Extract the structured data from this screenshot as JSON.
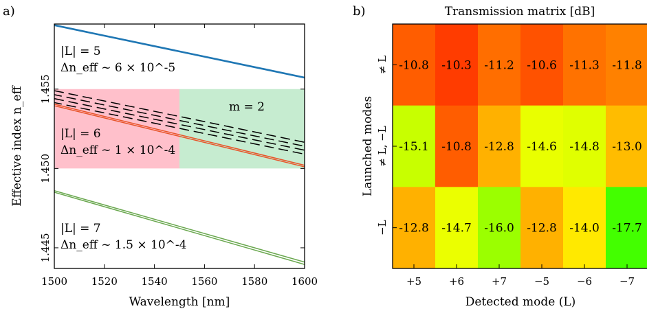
{
  "panel_labels": {
    "a": "a)",
    "b": "b)"
  },
  "chart_data": [
    {
      "type": "line",
      "panel": "a)",
      "title": "",
      "xlabel": "Wavelength [nm]",
      "ylabel": "Effective index n_eff",
      "xlim": [
        1500,
        1600
      ],
      "ylim": [
        1.4437,
        1.4591
      ],
      "xticks": [
        1500,
        1520,
        1540,
        1560,
        1580,
        1600
      ],
      "yticks": [
        1.445,
        1.45,
        1.455
      ],
      "xtick_labels": [
        "1500",
        "1520",
        "1540",
        "1560",
        "1580",
        "1600"
      ],
      "ytick_labels": [
        "1.445",
        "1.450",
        "1.455"
      ],
      "grid": false,
      "regions": [
        {
          "x": [
            1500,
            1550
          ],
          "y": [
            1.45,
            1.455
          ],
          "color": "#ffc0cb"
        },
        {
          "x": [
            1550,
            1600
          ],
          "y": [
            1.45,
            1.455
          ],
          "color": "#c6ecd0"
        }
      ],
      "series": [
        {
          "group": "|L|=5",
          "color": "#1f77b4",
          "style": "solid",
          "x": [
            1500,
            1600
          ],
          "y": [
            1.45905,
            1.45575
          ]
        },
        {
          "group": "|L|=5",
          "color": "#1f77b4",
          "style": "solid",
          "x": [
            1500,
            1600
          ],
          "y": [
            1.459,
            1.4557
          ]
        },
        {
          "group": "|L|=6",
          "color": "#e8552a",
          "style": "solid",
          "x": [
            1500,
            1600
          ],
          "y": [
            1.45405,
            1.4502
          ]
        },
        {
          "group": "|L|=6",
          "color": "#e8552a",
          "style": "solid",
          "x": [
            1500,
            1600
          ],
          "y": [
            1.45395,
            1.4501
          ]
        },
        {
          "group": "|L|=7",
          "color": "#6aa84f",
          "style": "solid",
          "x": [
            1500,
            1600
          ],
          "y": [
            1.4486,
            1.4441
          ]
        },
        {
          "group": "|L|=7",
          "color": "#6aa84f",
          "style": "solid",
          "x": [
            1500,
            1600
          ],
          "y": [
            1.4485,
            1.44395
          ]
        },
        {
          "group": "m=2",
          "color": "#000000",
          "style": "dashed",
          "x": [
            1500,
            1600
          ],
          "y": [
            1.4549,
            1.45165
          ]
        },
        {
          "group": "m=2",
          "color": "#000000",
          "style": "dashed",
          "x": [
            1500,
            1600
          ],
          "y": [
            1.45465,
            1.4514
          ]
        },
        {
          "group": "m=2",
          "color": "#000000",
          "style": "dashed",
          "x": [
            1500,
            1600
          ],
          "y": [
            1.4544,
            1.45115
          ]
        },
        {
          "group": "m=2",
          "color": "#000000",
          "style": "dashed",
          "x": [
            1500,
            1600
          ],
          "y": [
            1.45415,
            1.4509
          ]
        }
      ],
      "annotations": [
        {
          "line1": "|L| = 5",
          "line2": "Δn_eff ~ 6 × 10^-5"
        },
        {
          "line1": "|L| = 6",
          "line2": "Δn_eff ~ 1 × 10^-4"
        },
        {
          "line1": "|L| = 7",
          "line2": "Δn_eff ~ 1.5 × 10^-4"
        },
        {
          "line1": "m = 2",
          "line2": ""
        }
      ]
    },
    {
      "type": "heatmap",
      "panel": "b)",
      "title": "Transmission matrix [dB]",
      "xlabel": "Detected mode (L)",
      "ylabel": "Launched modes",
      "x_categories": [
        "+5",
        "+6",
        "+7",
        "−5",
        "−6",
        "−7"
      ],
      "y_categories": [
        "≠ L",
        "≠ L, −L",
        "−L"
      ],
      "values": [
        [
          -10.8,
          -10.3,
          -11.2,
          -10.6,
          -11.3,
          -11.8
        ],
        [
          -15.1,
          -10.8,
          -12.8,
          -14.6,
          -14.8,
          -13.0
        ],
        [
          -12.8,
          -14.7,
          -16.0,
          -12.8,
          -14.0,
          -17.7
        ]
      ],
      "value_labels": [
        [
          "-10.8",
          "-10.3",
          "-11.2",
          "-10.6",
          "-11.3",
          "-11.8"
        ],
        [
          "-15.1",
          "-10.8",
          "-12.8",
          "-14.6",
          "-14.8",
          "-13.0"
        ],
        [
          "-12.8",
          "-14.7",
          "-16.0",
          "-12.8",
          "-14.0",
          "-17.7"
        ]
      ],
      "colormap": "red-yellow-green",
      "colors": [
        [
          "#ff5d00",
          "#ff3c00",
          "#ff6e00",
          "#ff5200",
          "#ff7200",
          "#ff8100"
        ],
        [
          "#c8ff00",
          "#ff5d00",
          "#ffb100",
          "#e9ff00",
          "#e0ff00",
          "#ffbc00"
        ],
        [
          "#ffb100",
          "#ebff00",
          "#9bff00",
          "#ffb100",
          "#ffe900",
          "#43ff00"
        ]
      ]
    }
  ]
}
